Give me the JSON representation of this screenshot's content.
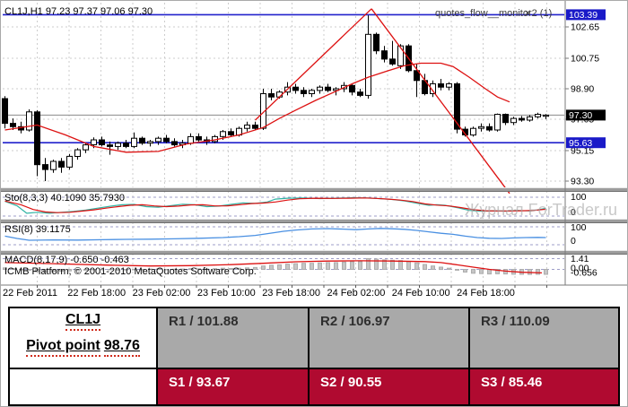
{
  "header": {
    "ohlc_label": "CL1J,H1 97.23 97.37 97.06 97.30",
    "overlay_title": "quotes_flow__monitor2 (1)",
    "close_icon": "✕"
  },
  "watermark": "Журнал ForTrader.ru",
  "copyright": "ICMB Platform, © 2001-2010 MetaQuotes Software Corp.",
  "time_axis": [
    "22 Feb 2011",
    "22 Feb 18:00",
    "23 Feb 02:00",
    "23 Feb 10:00",
    "23 Feb 18:00",
    "24 Feb 02:00",
    "24 Feb 10:00",
    "24 Feb 18:00"
  ],
  "price_scale": {
    "ticks": [
      "102.65",
      "100.75",
      "98.90",
      "97.05",
      "95.15",
      "93.30"
    ],
    "tick_values": [
      102.65,
      100.75,
      98.9,
      97.05,
      95.15,
      93.3
    ],
    "tags": [
      {
        "text": "103.39",
        "value": 103.39,
        "bg": "#1a1ac8",
        "fg": "#ffffff"
      },
      {
        "text": "97.30",
        "value": 97.3,
        "bg": "#000000",
        "fg": "#ffffff"
      },
      {
        "text": "95.63",
        "value": 95.63,
        "bg": "#1a1ac8",
        "fg": "#ffffff"
      }
    ]
  },
  "indicators": {
    "sto_label": "Sto(8,3,3) 40.1090 35.7930",
    "sto_scale": [
      "100",
      "0"
    ],
    "rsi_label": "RSI(8) 39.1175",
    "rsi_scale": [
      "100",
      "0"
    ],
    "macd_label": "MACD(8,17,9) -0.650 -0.463",
    "macd_scale": [
      "1.41",
      "0.00",
      "-0.656"
    ]
  },
  "chart_data": {
    "type": "candlestick",
    "symbol": "CL1J",
    "timeframe": "H1",
    "title": "CL1J,H1",
    "last_ohlc": {
      "open": 97.23,
      "high": 97.37,
      "low": 97.06,
      "close": 97.3
    },
    "price_gridlines": [
      102.65,
      100.75,
      98.9,
      97.05,
      95.15,
      93.3
    ],
    "level_lines": [
      {
        "price": 103.39
      },
      {
        "price": 95.63
      }
    ],
    "current_price": 97.3,
    "candles": [
      [
        98.3,
        98.45,
        96.5,
        96.8
      ],
      [
        96.8,
        97.1,
        96.4,
        96.6
      ],
      [
        96.6,
        96.9,
        96.2,
        96.4
      ],
      [
        96.4,
        97.65,
        96.3,
        97.5
      ],
      [
        97.5,
        97.6,
        93.6,
        94.3
      ],
      [
        94.3,
        94.7,
        93.3,
        94.0
      ],
      [
        94.0,
        94.6,
        93.8,
        94.5
      ],
      [
        94.5,
        94.7,
        93.8,
        94.15
      ],
      [
        94.15,
        94.95,
        94.0,
        94.8
      ],
      [
        94.8,
        95.3,
        94.6,
        95.2
      ],
      [
        95.2,
        95.6,
        95.0,
        95.5
      ],
      [
        95.5,
        95.95,
        95.3,
        95.8
      ],
      [
        95.8,
        96.0,
        95.4,
        95.5
      ],
      [
        95.5,
        95.7,
        94.9,
        95.4
      ],
      [
        95.4,
        95.7,
        95.2,
        95.6
      ],
      [
        95.6,
        95.8,
        95.3,
        95.4
      ],
      [
        95.4,
        96.25,
        95.3,
        95.9
      ],
      [
        95.9,
        96.0,
        95.5,
        95.6
      ],
      [
        95.6,
        95.8,
        95.4,
        95.7
      ],
      [
        95.7,
        96.0,
        95.5,
        95.9
      ],
      [
        95.9,
        96.1,
        95.6,
        95.7
      ],
      [
        95.7,
        95.9,
        95.4,
        95.5
      ],
      [
        95.5,
        95.8,
        95.3,
        95.6
      ],
      [
        95.6,
        96.2,
        95.5,
        96.0
      ],
      [
        96.0,
        96.2,
        95.7,
        95.8
      ],
      [
        95.8,
        96.0,
        95.5,
        95.7
      ],
      [
        95.7,
        96.1,
        95.6,
        96.0
      ],
      [
        96.0,
        96.4,
        95.8,
        96.3
      ],
      [
        96.3,
        96.5,
        96.0,
        96.1
      ],
      [
        96.1,
        96.6,
        96.0,
        96.5
      ],
      [
        96.5,
        96.9,
        96.3,
        96.7
      ],
      [
        96.7,
        96.9,
        96.4,
        96.5
      ],
      [
        96.5,
        98.9,
        96.4,
        98.6
      ],
      [
        98.6,
        98.9,
        98.2,
        98.4
      ],
      [
        98.4,
        98.8,
        98.3,
        98.7
      ],
      [
        98.7,
        99.3,
        98.5,
        99.0
      ],
      [
        99.0,
        99.2,
        98.6,
        98.8
      ],
      [
        98.8,
        99.0,
        98.4,
        98.6
      ],
      [
        98.6,
        98.9,
        98.4,
        98.8
      ],
      [
        98.8,
        99.1,
        98.6,
        99.0
      ],
      [
        99.0,
        99.2,
        98.7,
        98.8
      ],
      [
        98.8,
        99.0,
        98.5,
        98.9
      ],
      [
        98.9,
        99.3,
        98.7,
        99.1
      ],
      [
        99.1,
        99.2,
        98.5,
        98.7
      ],
      [
        98.7,
        98.9,
        98.4,
        98.5
      ],
      [
        98.5,
        103.35,
        98.3,
        102.2
      ],
      [
        102.2,
        102.3,
        101.0,
        101.2
      ],
      [
        101.2,
        101.5,
        100.5,
        100.7
      ],
      [
        100.7,
        101.8,
        100.3,
        100.4
      ],
      [
        100.3,
        101.6,
        100.1,
        101.5
      ],
      [
        101.5,
        101.6,
        99.9,
        100.0
      ],
      [
        100.0,
        100.4,
        98.4,
        99.4
      ],
      [
        99.4,
        99.8,
        98.5,
        98.6
      ],
      [
        98.6,
        99.4,
        98.4,
        99.2
      ],
      [
        99.2,
        99.5,
        98.8,
        99.0
      ],
      [
        99.0,
        99.3,
        98.8,
        99.2
      ],
      [
        99.2,
        99.3,
        96.2,
        96.45
      ],
      [
        96.45,
        96.6,
        96.0,
        96.1
      ],
      [
        96.1,
        96.6,
        96.0,
        96.5
      ],
      [
        96.5,
        96.8,
        96.3,
        96.6
      ],
      [
        96.6,
        96.8,
        96.3,
        96.4
      ],
      [
        96.4,
        97.4,
        96.3,
        97.35
      ],
      [
        97.35,
        97.4,
        96.7,
        96.85
      ],
      [
        96.85,
        97.2,
        96.7,
        97.1
      ],
      [
        97.1,
        97.25,
        96.9,
        97.0
      ],
      [
        97.0,
        97.3,
        96.9,
        97.2
      ],
      [
        97.2,
        97.45,
        97.1,
        97.35
      ],
      [
        97.23,
        97.37,
        97.06,
        97.3
      ]
    ],
    "ma": [
      [
        0,
        96.4
      ],
      [
        4,
        96.7
      ],
      [
        7.5,
        96.1
      ],
      [
        11,
        95.4
      ],
      [
        15,
        95.05
      ],
      [
        19,
        95.1
      ],
      [
        22.5,
        95.55
      ],
      [
        26,
        95.8
      ],
      [
        29,
        96.1
      ],
      [
        32,
        96.55
      ],
      [
        34,
        97.1
      ],
      [
        36,
        97.6
      ],
      [
        38.5,
        98.2
      ],
      [
        41,
        98.75
      ],
      [
        43,
        99.2
      ],
      [
        45,
        99.6
      ],
      [
        47.5,
        100.0
      ],
      [
        49.5,
        100.3
      ],
      [
        51.5,
        100.45
      ],
      [
        54,
        100.45
      ],
      [
        55.5,
        100.25
      ],
      [
        57.5,
        99.6
      ],
      [
        59.5,
        98.9
      ],
      [
        61,
        98.4
      ],
      [
        62.5,
        98.1
      ]
    ],
    "trendlines": [
      [
        [
          31,
          97.0
        ],
        [
          45.4,
          103.75
        ]
      ],
      [
        [
          45.4,
          103.75
        ],
        [
          62.5,
          92.55
        ]
      ]
    ],
    "stochastic": {
      "range": [
        0,
        100
      ],
      "k": [
        [
          0,
          78
        ],
        [
          1.5,
          55
        ],
        [
          2.7,
          15
        ],
        [
          4,
          20
        ],
        [
          5.5,
          15
        ],
        [
          7,
          20
        ],
        [
          8.5,
          25
        ],
        [
          10,
          32
        ],
        [
          11.5,
          42
        ],
        [
          13,
          52
        ],
        [
          14.5,
          60
        ],
        [
          16,
          62
        ],
        [
          17.5,
          50
        ],
        [
          19,
          47
        ],
        [
          20.5,
          55
        ],
        [
          22,
          63
        ],
        [
          23.5,
          60
        ],
        [
          25,
          50
        ],
        [
          26.5,
          53
        ],
        [
          28,
          62
        ],
        [
          29.5,
          70
        ],
        [
          31,
          67
        ],
        [
          32.5,
          75
        ],
        [
          33.5,
          90
        ],
        [
          35,
          95
        ],
        [
          37,
          96
        ],
        [
          39,
          93
        ],
        [
          41,
          95
        ],
        [
          43,
          97
        ],
        [
          45,
          96
        ],
        [
          46.5,
          92
        ],
        [
          48,
          88
        ],
        [
          49.5,
          80
        ],
        [
          51,
          68
        ],
        [
          52.5,
          57
        ],
        [
          53.5,
          60
        ],
        [
          54.5,
          57
        ],
        [
          56,
          45
        ],
        [
          57.5,
          30
        ],
        [
          59,
          26
        ],
        [
          60.5,
          28
        ],
        [
          62,
          26
        ],
        [
          63.5,
          30
        ],
        [
          65,
          27
        ],
        [
          66,
          33
        ],
        [
          67,
          41
        ]
      ],
      "d": [
        [
          0,
          80
        ],
        [
          2,
          60
        ],
        [
          3.5,
          35
        ],
        [
          5,
          22
        ],
        [
          6.5,
          18
        ],
        [
          8,
          20
        ],
        [
          9.5,
          26
        ],
        [
          11,
          33
        ],
        [
          12.5,
          42
        ],
        [
          14,
          50
        ],
        [
          15.5,
          57
        ],
        [
          17,
          60
        ],
        [
          18.5,
          54
        ],
        [
          20,
          50
        ],
        [
          21.5,
          53
        ],
        [
          23,
          59
        ],
        [
          24.5,
          60
        ],
        [
          26,
          54
        ],
        [
          27.5,
          54
        ],
        [
          29,
          60
        ],
        [
          30.5,
          66
        ],
        [
          32,
          69
        ],
        [
          33.5,
          75
        ],
        [
          35,
          85
        ],
        [
          36.5,
          92
        ],
        [
          38.5,
          95
        ],
        [
          40.5,
          94
        ],
        [
          42.5,
          95
        ],
        [
          44.5,
          96
        ],
        [
          46,
          94
        ],
        [
          47.5,
          90
        ],
        [
          49,
          85
        ],
        [
          50.5,
          77
        ],
        [
          52,
          65
        ],
        [
          53.5,
          58
        ],
        [
          55,
          54
        ],
        [
          56.5,
          45
        ],
        [
          58,
          34
        ],
        [
          59.5,
          28
        ],
        [
          61,
          27
        ],
        [
          62.5,
          27
        ],
        [
          64,
          28
        ],
        [
          65.5,
          30
        ],
        [
          67,
          36
        ]
      ]
    },
    "rsi": {
      "range": [
        0,
        100
      ],
      "points": [
        [
          0,
          48
        ],
        [
          1.5,
          35
        ],
        [
          3,
          25
        ],
        [
          6,
          27
        ],
        [
          9,
          26
        ],
        [
          12,
          28
        ],
        [
          15,
          30
        ],
        [
          18,
          31
        ],
        [
          21,
          33
        ],
        [
          24,
          36
        ],
        [
          27,
          40
        ],
        [
          29,
          45
        ],
        [
          31,
          52
        ],
        [
          33,
          65
        ],
        [
          34.5,
          75
        ],
        [
          36,
          82
        ],
        [
          38,
          88
        ],
        [
          40,
          90
        ],
        [
          42,
          87
        ],
        [
          43.5,
          84
        ],
        [
          45,
          88
        ],
        [
          46.5,
          91
        ],
        [
          48,
          89
        ],
        [
          49.5,
          86
        ],
        [
          51,
          80
        ],
        [
          52.5,
          72
        ],
        [
          54,
          64
        ],
        [
          55.5,
          58
        ],
        [
          57,
          48
        ],
        [
          58.5,
          40
        ],
        [
          60,
          36
        ],
        [
          61.5,
          35
        ],
        [
          63,
          38
        ],
        [
          64.5,
          40
        ],
        [
          66,
          41
        ],
        [
          67,
          40
        ]
      ]
    },
    "macd": {
      "range": [
        1.41,
        -0.656
      ],
      "histogram": [
        0.2,
        0.1,
        0.0,
        -0.1,
        -0.3,
        -0.35,
        -0.3,
        -0.25,
        -0.2,
        -0.15,
        -0.1,
        -0.05,
        0.0,
        -0.05,
        -0.1,
        -0.08,
        -0.05,
        0.0,
        0.05,
        0.05,
        0.0,
        0.02,
        0.05,
        0.1,
        0.08,
        0.05,
        0.1,
        0.15,
        0.12,
        0.15,
        0.2,
        0.25,
        0.45,
        0.55,
        0.6,
        0.7,
        0.75,
        0.8,
        0.8,
        0.85,
        0.9,
        0.9,
        0.95,
        1.0,
        1.0,
        1.41,
        1.35,
        1.25,
        1.2,
        1.15,
        1.05,
        0.85,
        0.65,
        0.45,
        0.3,
        0.15,
        -0.1,
        -0.35,
        -0.5,
        -0.55,
        -0.6,
        -0.58,
        -0.6,
        -0.63,
        -0.65,
        -0.66,
        -0.65,
        -0.65
      ],
      "signal": [
        [
          0,
          0.9
        ],
        [
          6,
          0.75
        ],
        [
          13,
          0.55
        ],
        [
          18,
          0.45
        ],
        [
          23,
          0.5
        ],
        [
          28,
          0.62
        ],
        [
          32,
          0.8
        ],
        [
          36,
          1.0
        ],
        [
          40,
          1.1
        ],
        [
          44,
          1.13
        ],
        [
          48,
          1.1
        ],
        [
          52,
          1.02
        ],
        [
          54,
          0.9
        ],
        [
          56,
          0.6
        ],
        [
          58,
          0.3
        ],
        [
          60,
          0.0
        ],
        [
          62,
          -0.22
        ],
        [
          64,
          -0.38
        ],
        [
          66.5,
          -0.46
        ]
      ]
    }
  },
  "colors": {
    "grid": "#cdcdcd",
    "panel_level": "#9e9ec8",
    "bull": "#ffffff",
    "bear": "#000000",
    "red_line": "#dd1111",
    "sto_k": "#2fb3a3",
    "sto_d": "#dd1111",
    "rsi_line": "#4a90e2",
    "macd_hist": "#c6c6c6",
    "level_blue": "#2222cc",
    "current_gray": "#8a8a8a",
    "separator": "#9c9c9c",
    "watermark": "#a8a8a8",
    "resistance_bg": "#a9a9a9",
    "support_bg": "#b00a30"
  },
  "pivot_table": {
    "symbol": "CL1J",
    "pivot_word": "Pivot point",
    "pivot_value": "98.76",
    "resistance": [
      "R1 / 101.88",
      "R2  / 106.97",
      "R3 / 110.09"
    ],
    "support": [
      "S1 / 93.67",
      "S2 / 90.55",
      "S3 / 85.46"
    ]
  }
}
